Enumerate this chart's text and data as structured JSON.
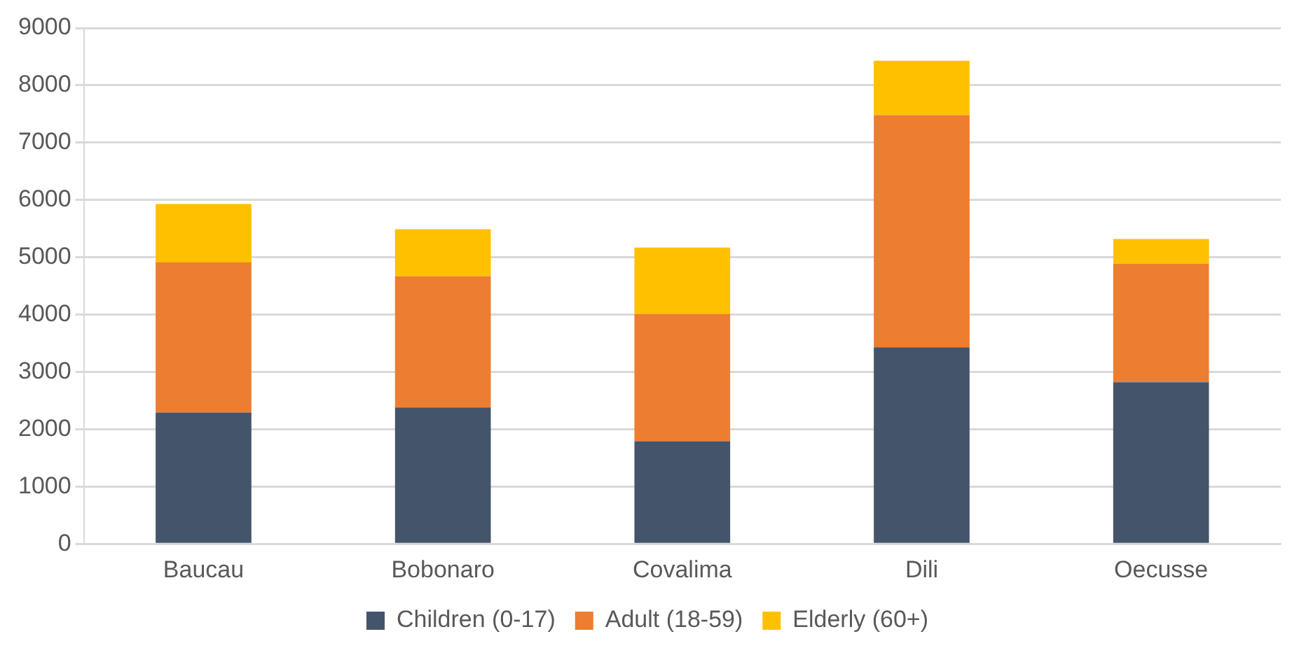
{
  "chart_data": {
    "type": "bar",
    "stacked": true,
    "categories": [
      "Baucau",
      "Bobonaro",
      "Covalima",
      "Dili",
      "Oecusse"
    ],
    "series": [
      {
        "name": "Children (0-17)",
        "color": "#44546a",
        "values": [
          2290,
          2380,
          1790,
          3430,
          2820
        ]
      },
      {
        "name": "Adult (18-59)",
        "color": "#ed7d31",
        "values": [
          2620,
          2290,
          2220,
          4050,
          2070
        ]
      },
      {
        "name": "Elderly (60+)",
        "color": "#ffc000",
        "values": [
          1020,
          820,
          1160,
          950,
          430
        ]
      }
    ],
    "ylim": [
      0,
      9000
    ],
    "yticks": [
      0,
      1000,
      2000,
      3000,
      4000,
      5000,
      6000,
      7000,
      8000,
      9000
    ],
    "grid": "y",
    "legend": "bottom"
  }
}
